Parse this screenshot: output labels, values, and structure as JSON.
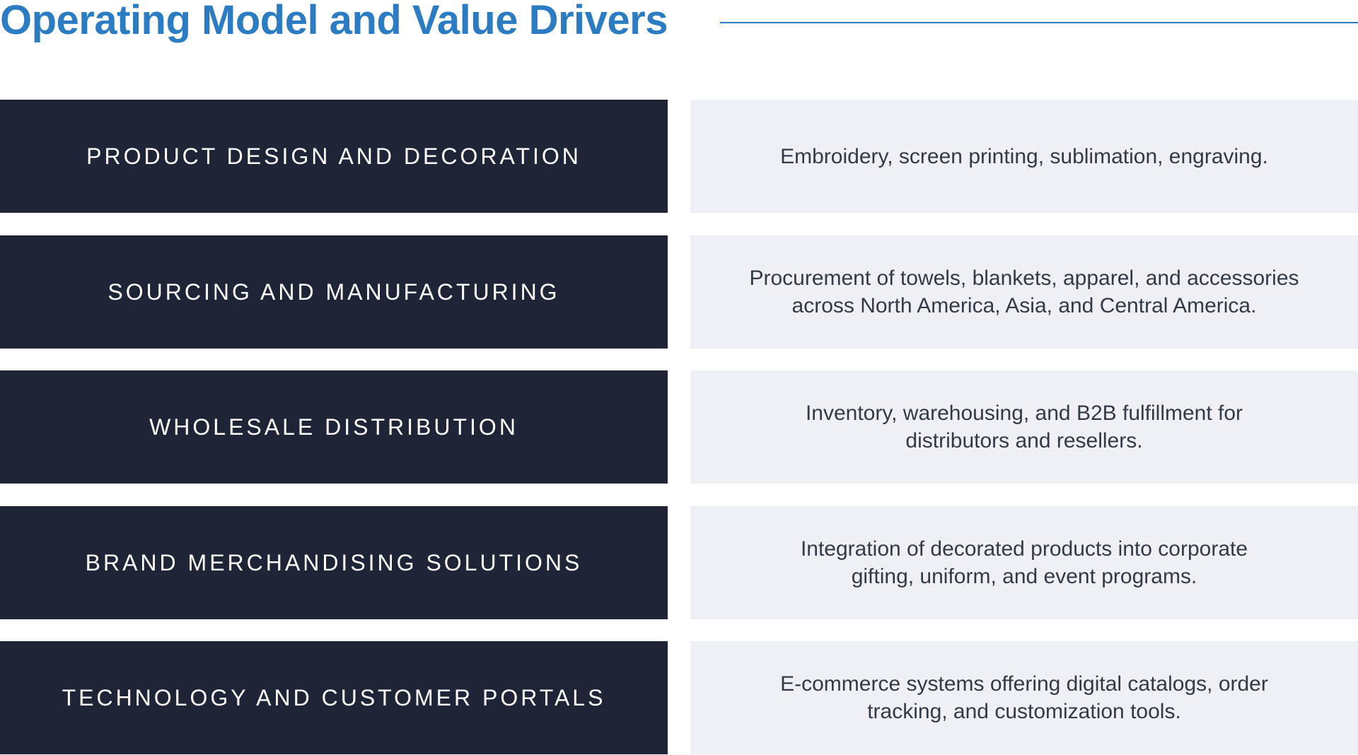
{
  "title": "Operating Model and Value Drivers",
  "colors": {
    "accent": "#2b7cc2",
    "label_bg": "#1f2437",
    "desc_bg": "#eff0f5"
  },
  "rows": [
    {
      "label": "PRODUCT DESIGN AND DECORATION",
      "description": "Embroidery, screen printing, sublimation, engraving."
    },
    {
      "label": "SOURCING AND MANUFACTURING",
      "description": "Procurement of towels, blankets, apparel, and accessories across North America, Asia, and Central America."
    },
    {
      "label": "WHOLESALE DISTRIBUTION",
      "description": "Inventory, warehousing, and B2B fulfillment for distributors and resellers."
    },
    {
      "label": "BRAND MERCHANDISING SOLUTIONS",
      "description": "Integration of decorated products into corporate gifting, uniform, and event programs."
    },
    {
      "label": "TECHNOLOGY AND CUSTOMER PORTALS",
      "description": "E-commerce systems offering digital catalogs, order tracking, and customization tools."
    }
  ]
}
